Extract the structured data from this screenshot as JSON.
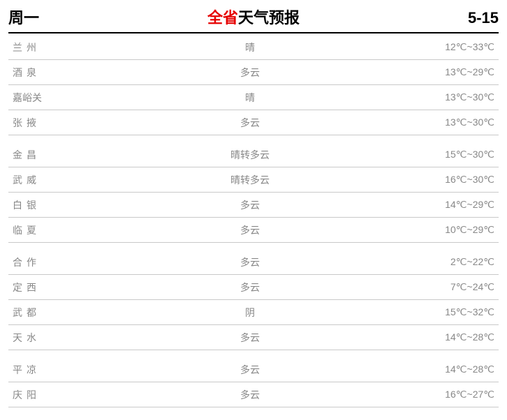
{
  "header": {
    "day": "周一",
    "title_red": "全省",
    "title_black": "天气预报",
    "date": "5-15"
  },
  "colors": {
    "accent_red": "#e60000",
    "text_muted": "#888888",
    "border_header": "#000000",
    "border_row": "#c9c9c9",
    "background": "#ffffff"
  },
  "table": {
    "columns": [
      "city",
      "weather",
      "temperature"
    ],
    "groups": [
      {
        "rows": [
          {
            "city": "兰州",
            "weather": "晴",
            "temp": "12℃~33℃",
            "spaced": true
          },
          {
            "city": "酒泉",
            "weather": "多云",
            "temp": "13℃~29℃",
            "spaced": true
          },
          {
            "city": "嘉峪关",
            "weather": "晴",
            "temp": "13℃~30℃",
            "spaced": false
          },
          {
            "city": "张掖",
            "weather": "多云",
            "temp": "13℃~30℃",
            "spaced": true
          }
        ]
      },
      {
        "rows": [
          {
            "city": "金昌",
            "weather": "晴转多云",
            "temp": "15℃~30℃",
            "spaced": true
          },
          {
            "city": "武威",
            "weather": "晴转多云",
            "temp": "16℃~30℃",
            "spaced": true
          },
          {
            "city": "白银",
            "weather": "多云",
            "temp": "14℃~29℃",
            "spaced": true
          },
          {
            "city": "临夏",
            "weather": "多云",
            "temp": "10℃~29℃",
            "spaced": true
          }
        ]
      },
      {
        "rows": [
          {
            "city": "合作",
            "weather": "多云",
            "temp": "2℃~22℃",
            "spaced": true
          },
          {
            "city": "定西",
            "weather": "多云",
            "temp": "7℃~24℃",
            "spaced": true
          },
          {
            "city": "武都",
            "weather": "阴",
            "temp": "15℃~32℃",
            "spaced": true
          },
          {
            "city": "天水",
            "weather": "多云",
            "temp": "14℃~28℃",
            "spaced": true
          }
        ]
      },
      {
        "rows": [
          {
            "city": "平凉",
            "weather": "多云",
            "temp": "14℃~28℃",
            "spaced": true
          },
          {
            "city": "庆阳",
            "weather": "多云",
            "temp": "16℃~27℃",
            "spaced": true
          }
        ]
      }
    ]
  }
}
